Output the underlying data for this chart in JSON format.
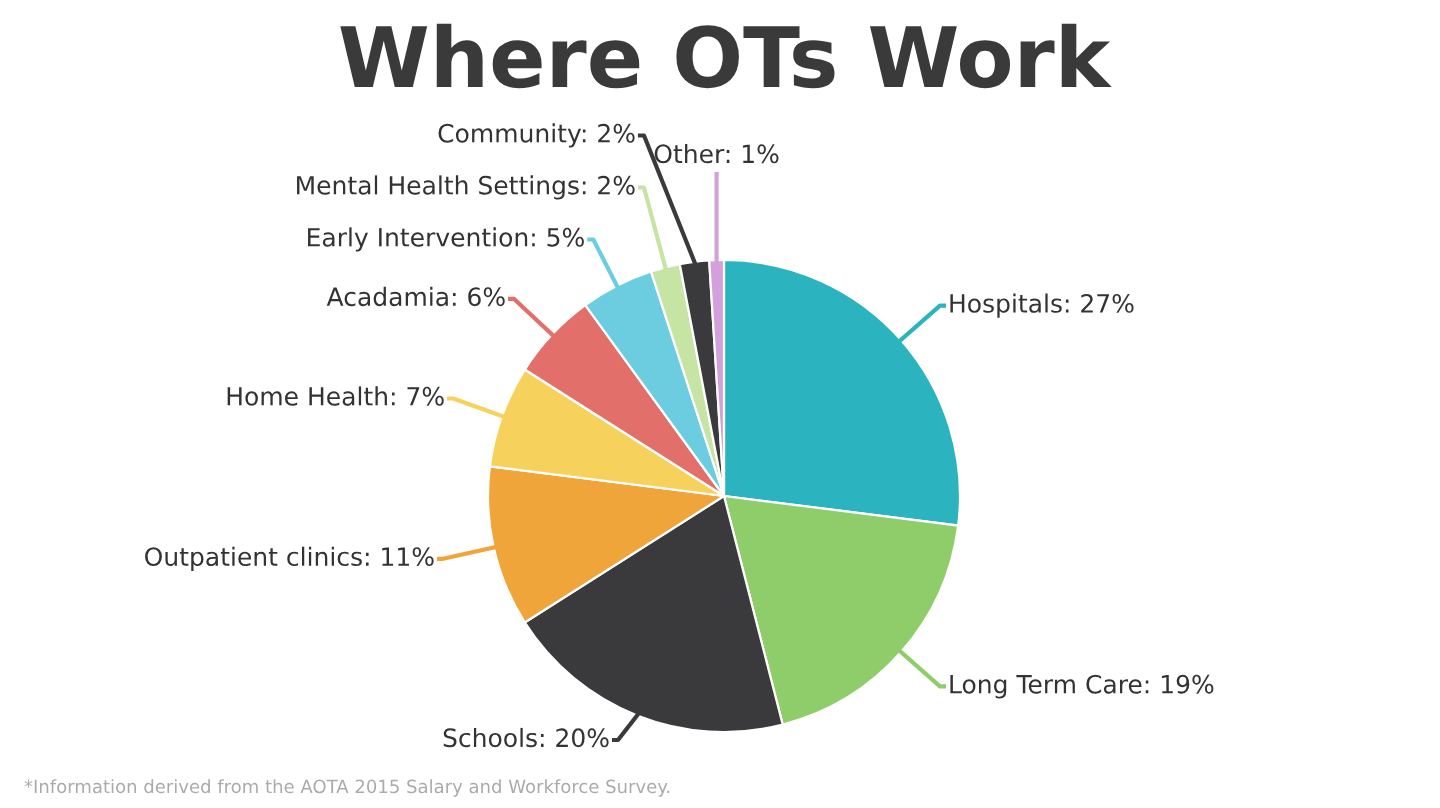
{
  "chart_data": {
    "type": "pie",
    "title": "Where OTs Work",
    "categories": [
      "Hospitals",
      "Long Term Care",
      "Schools",
      "Outpatient clinics",
      "Home Health",
      "Acadamia",
      "Early Intervention",
      "Mental Health Settings",
      "Community",
      "Other"
    ],
    "values": [
      27,
      19,
      20,
      11,
      7,
      6,
      5,
      2,
      2,
      1
    ],
    "value_labels": [
      "27%",
      "19%",
      "20%",
      "11%",
      "7%",
      "6%",
      "5%",
      "2%",
      "2%",
      "1%"
    ],
    "colors": [
      "#2bb3c0",
      "#8fcd6b",
      "#3a3a3c",
      "#f0a53b",
      "#f6d25c",
      "#e26f6a",
      "#6dcde0",
      "#c6e4a4",
      "#3a3a3c",
      "#d4a0dc"
    ],
    "annotations": [
      "*Information derived from the AOTA 2015 Salary and Workforce Survey."
    ],
    "legend": false
  }
}
